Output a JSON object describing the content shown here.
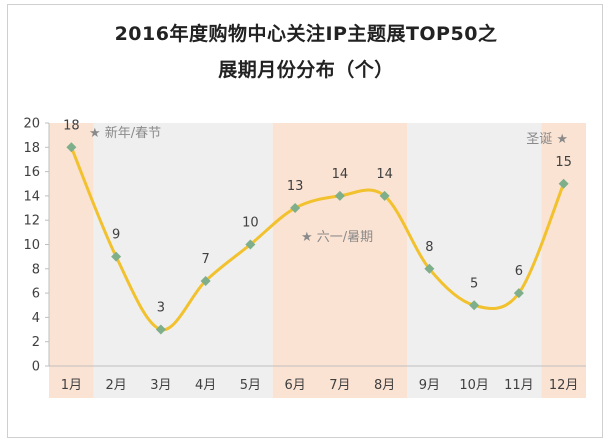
{
  "chart_data": {
    "type": "line",
    "title": "2016年度购物中心关注IP主题展TOP50之",
    "subtitle": "展期月份分布（个）",
    "categories": [
      "1月",
      "2月",
      "3月",
      "4月",
      "5月",
      "6月",
      "7月",
      "8月",
      "9月",
      "10月",
      "11月",
      "12月"
    ],
    "series": [
      {
        "values": [
          18,
          9,
          3,
          7,
          10,
          13,
          14,
          14,
          8,
          5,
          6,
          15
        ]
      }
    ],
    "ylim": [
      0,
      20
    ],
    "yticks": [
      0,
      2,
      4,
      6,
      8,
      10,
      12,
      14,
      16,
      18,
      20
    ],
    "xlabel": "",
    "ylabel": "",
    "grid": false,
    "highlight_bands": [
      {
        "months": [
          "1月"
        ],
        "color": "#fbe3d3"
      },
      {
        "months": [
          "2月",
          "3月",
          "4月",
          "5月"
        ],
        "color": "#efefef"
      },
      {
        "months": [
          "6月",
          "7月",
          "8月"
        ],
        "color": "#fbe3d3"
      },
      {
        "months": [
          "9月",
          "10月",
          "11月"
        ],
        "color": "#efefef"
      },
      {
        "months": [
          "12月"
        ],
        "color": "#fbe3d3"
      }
    ],
    "annotations": [
      {
        "text": "★ 新年/春节",
        "month": "1月"
      },
      {
        "text": "★ 六一/暑期",
        "month": "7月"
      },
      {
        "text": "圣诞 ★",
        "month": "12月"
      }
    ],
    "colors": {
      "line": "#f2c12e",
      "marker": "#7fae8a",
      "band_peak": "#fbe3d3",
      "band_normal": "#efefef"
    }
  }
}
